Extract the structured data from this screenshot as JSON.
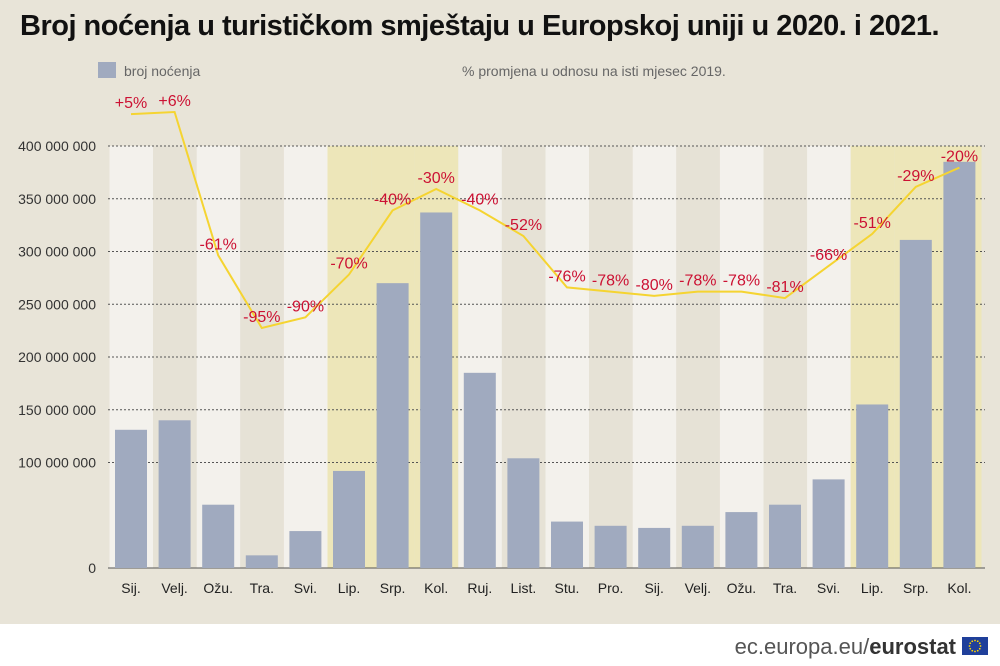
{
  "title": "Broj noćenja u turističkom smještaju u Europskoj uniji u 2020. i 2021.",
  "legend": {
    "bars_label": "broj noćenja",
    "line_label": "% promjena u odnosu na isti mjesec 2019."
  },
  "footer": {
    "source_prefix": "ec.europa.eu/",
    "source_brand": "eurostat"
  },
  "colors": {
    "bar": "#a0aabf",
    "line": "#f5d431",
    "label": "#cc1133",
    "summer_band": "#ede6b9",
    "light_band": "#f3f1ec",
    "dark_band": "#e6e2d6"
  },
  "icons": [
    "crescent-moon-icon",
    "eu-flag-icon"
  ],
  "chart_data": {
    "type": "bar",
    "title": "Broj noćenja u turističkom smještaju u Europskoj uniji u 2020. i 2021.",
    "categories": [
      "Sij.",
      "Velj.",
      "Ožu.",
      "Tra.",
      "Svi.",
      "Lip.",
      "Srp.",
      "Kol.",
      "Ruj.",
      "List.",
      "Stu.",
      "Pro.",
      "Sij.",
      "Velj.",
      "Ožu.",
      "Tra.",
      "Svi.",
      "Lip.",
      "Srp.",
      "Kol."
    ],
    "series": [
      {
        "name": "broj noćenja",
        "type": "bar",
        "values": [
          131000000,
          140000000,
          60000000,
          12000000,
          35000000,
          92000000,
          270000000,
          337000000,
          185000000,
          104000000,
          44000000,
          40000000,
          38000000,
          40000000,
          53000000,
          60000000,
          84000000,
          155000000,
          311000000,
          385000000
        ]
      },
      {
        "name": "% promjena u odnosu na isti mjesec 2019.",
        "type": "line",
        "values": [
          5,
          6,
          -61,
          -95,
          -90,
          -70,
          -40,
          -30,
          -40,
          -52,
          -76,
          -78,
          -80,
          -78,
          -78,
          -81,
          -66,
          -51,
          -29,
          -20
        ],
        "labels": [
          "+5%",
          "+6%",
          "-61%",
          "-95%",
          "-90%",
          "-70%",
          "-40%",
          "-30%",
          "-40%",
          "-52%",
          "-76%",
          "-78%",
          "-80%",
          "-78%",
          "-78%",
          "-81%",
          "-66%",
          "-51%",
          "-29%",
          "-20%"
        ]
      }
    ],
    "y_ticks": [
      "0",
      "100 000 000",
      "150 000 000",
      "200 000 000",
      "250 000 000",
      "300 000 000",
      "350 000 000",
      "400 000 000"
    ],
    "y_tick_values": [
      0,
      100000000,
      150000000,
      200000000,
      250000000,
      300000000,
      350000000,
      400000000
    ],
    "ylim": [
      0,
      400000000
    ],
    "grid": true,
    "legend_position": "top-left",
    "summer_months": [
      5,
      6,
      7,
      17,
      18,
      19
    ]
  }
}
